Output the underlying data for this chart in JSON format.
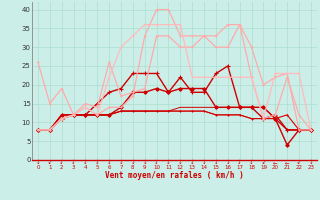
{
  "xlabel": "Vent moyen/en rafales ( km/h )",
  "bg_color": "#cceee8",
  "grid_color": "#aaddcc",
  "xlim": [
    -0.5,
    23.5
  ],
  "ylim": [
    0,
    42
  ],
  "yticks": [
    0,
    5,
    10,
    15,
    20,
    25,
    30,
    35,
    40
  ],
  "xticks": [
    0,
    1,
    2,
    3,
    4,
    5,
    6,
    7,
    8,
    9,
    10,
    11,
    12,
    13,
    14,
    15,
    16,
    17,
    18,
    19,
    20,
    21,
    22,
    23
  ],
  "series": [
    {
      "x": [
        0,
        1,
        2,
        3,
        4,
        5,
        6,
        7,
        8,
        9,
        10,
        11,
        12,
        13,
        14,
        15,
        16,
        17,
        18,
        19,
        20,
        21,
        22,
        23
      ],
      "y": [
        8,
        8,
        12,
        12,
        12,
        12,
        12,
        13,
        13,
        13,
        13,
        13,
        13,
        13,
        13,
        12,
        12,
        12,
        11,
        11,
        11,
        12,
        8,
        8
      ],
      "color": "#dd0000",
      "lw": 0.8,
      "marker": "+",
      "ms": 2.0
    },
    {
      "x": [
        0,
        1,
        2,
        3,
        4,
        5,
        6,
        7,
        8,
        9,
        10,
        11,
        12,
        13,
        14,
        15,
        16,
        17,
        18,
        19,
        20,
        21,
        22,
        23
      ],
      "y": [
        8,
        8,
        12,
        12,
        12,
        12,
        12,
        14,
        18,
        18,
        19,
        18,
        19,
        19,
        19,
        14,
        14,
        14,
        14,
        14,
        11,
        4,
        8,
        8
      ],
      "color": "#cc0000",
      "lw": 1.0,
      "marker": "D",
      "ms": 1.8
    },
    {
      "x": [
        0,
        1,
        2,
        3,
        4,
        5,
        6,
        7,
        8,
        9,
        10,
        11,
        12,
        13,
        14,
        15,
        16,
        17,
        18,
        19,
        20,
        21,
        22,
        23
      ],
      "y": [
        8,
        8,
        11,
        12,
        12,
        15,
        18,
        19,
        23,
        23,
        23,
        18,
        22,
        18,
        18,
        23,
        25,
        14,
        14,
        11,
        12,
        8,
        8,
        8
      ],
      "color": "#cc0000",
      "lw": 1.0,
      "marker": "+",
      "ms": 2.5
    },
    {
      "x": [
        0,
        1,
        2,
        3,
        4,
        5,
        6,
        7,
        8,
        9,
        10,
        11,
        12,
        13,
        14,
        15,
        16,
        17,
        18,
        19,
        20,
        21,
        22,
        23
      ],
      "y": [
        8,
        8,
        12,
        12,
        12,
        12,
        12,
        13,
        13,
        13,
        13,
        13,
        14,
        14,
        14,
        14,
        14,
        14,
        14,
        14,
        11,
        8,
        8,
        8
      ],
      "color": "#cc0000",
      "lw": 0.7,
      "marker": null,
      "ms": 0
    },
    {
      "x": [
        0,
        1,
        2,
        3,
        4,
        5,
        6,
        7,
        8,
        9,
        10,
        11,
        12,
        13,
        14,
        15,
        16,
        17,
        18,
        19,
        20,
        21,
        22,
        23
      ],
      "y": [
        8,
        8,
        12,
        12,
        12,
        12,
        12,
        13,
        13,
        13,
        13,
        13,
        13,
        13,
        13,
        12,
        12,
        12,
        11,
        11,
        11,
        8,
        8,
        8
      ],
      "color": "#cc0000",
      "lw": 0.6,
      "marker": null,
      "ms": 0
    },
    {
      "x": [
        0,
        1,
        2,
        3,
        4,
        5,
        6,
        7,
        8,
        9,
        10,
        11,
        12,
        13,
        14,
        15,
        16,
        17,
        18,
        19,
        20,
        21,
        22,
        23
      ],
      "y": [
        26,
        15,
        19,
        12,
        15,
        14,
        26,
        17,
        18,
        19,
        33,
        33,
        30,
        30,
        33,
        30,
        30,
        36,
        30,
        20,
        22,
        23,
        8,
        8
      ],
      "color": "#ffaaaa",
      "lw": 0.9,
      "marker": "+",
      "ms": 2.0
    },
    {
      "x": [
        0,
        1,
        2,
        3,
        4,
        5,
        6,
        7,
        8,
        9,
        10,
        11,
        12,
        13,
        14,
        15,
        16,
        17,
        18,
        19,
        20,
        21,
        22,
        23
      ],
      "y": [
        8,
        8,
        11,
        12,
        14,
        12,
        14,
        14,
        17,
        33,
        40,
        40,
        33,
        33,
        33,
        33,
        36,
        36,
        22,
        11,
        12,
        22,
        12,
        8
      ],
      "color": "#ffaaaa",
      "lw": 0.9,
      "marker": "+",
      "ms": 2.0
    },
    {
      "x": [
        0,
        1,
        2,
        3,
        4,
        5,
        6,
        7,
        8,
        9,
        10,
        11,
        12,
        13,
        14,
        15,
        16,
        17,
        18,
        19,
        20,
        21,
        22,
        23
      ],
      "y": [
        8,
        8,
        11,
        12,
        14,
        12,
        22,
        30,
        33,
        36,
        36,
        36,
        36,
        22,
        22,
        22,
        22,
        22,
        22,
        11,
        23,
        23,
        23,
        8
      ],
      "color": "#ffbbbb",
      "lw": 0.9,
      "marker": "+",
      "ms": 2.0
    }
  ]
}
